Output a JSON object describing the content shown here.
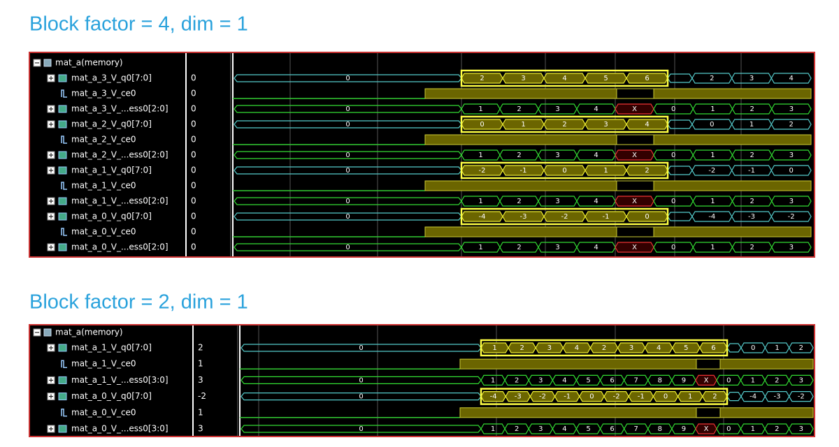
{
  "panels": [
    {
      "title": "Block factor = 4, dim = 1",
      "root": "mat_a(memory)",
      "signals": [
        {
          "name": "mat_a_3_V_q0[7:0]",
          "value": "0",
          "segments": [
            "0",
            "2",
            "3",
            "4",
            "5",
            "6",
            "2",
            "3",
            "4"
          ]
        },
        {
          "name": "mat_a_3_V_ce0",
          "value": "0"
        },
        {
          "name": "mat_a_3_V_...ess0[2:0]",
          "value": "0",
          "segments": [
            "0",
            "1",
            "2",
            "3",
            "4",
            "X",
            "0",
            "1",
            "2",
            "3"
          ]
        },
        {
          "name": "mat_a_2_V_q0[7:0]",
          "value": "0",
          "segments": [
            "0",
            "0",
            "1",
            "2",
            "3",
            "4",
            "0",
            "1",
            "2"
          ]
        },
        {
          "name": "mat_a_2_V_ce0",
          "value": "0"
        },
        {
          "name": "mat_a_2_V_...ess0[2:0]",
          "value": "0",
          "segments": [
            "0",
            "1",
            "2",
            "3",
            "4",
            "X",
            "0",
            "1",
            "2",
            "3"
          ]
        },
        {
          "name": "mat_a_1_V_q0[7:0]",
          "value": "0",
          "segments": [
            "0",
            "-2",
            "-1",
            "0",
            "1",
            "2",
            "-2",
            "-1",
            "0"
          ]
        },
        {
          "name": "mat_a_1_V_ce0",
          "value": "0"
        },
        {
          "name": "mat_a_1_V_...ess0[2:0]",
          "value": "0",
          "segments": [
            "0",
            "1",
            "2",
            "3",
            "4",
            "X",
            "0",
            "1",
            "2",
            "3"
          ]
        },
        {
          "name": "mat_a_0_V_q0[7:0]",
          "value": "0",
          "segments": [
            "0",
            "-4",
            "-3",
            "-2",
            "-1",
            "0",
            "-4",
            "-3",
            "-2"
          ]
        },
        {
          "name": "mat_a_0_V_ce0",
          "value": "0"
        },
        {
          "name": "mat_a_0_V_...ess0[2:0]",
          "value": "0",
          "segments": [
            "0",
            "1",
            "2",
            "3",
            "4",
            "X",
            "0",
            "1",
            "2",
            "3"
          ]
        }
      ]
    },
    {
      "title": "Block factor = 2, dim = 1",
      "root": "mat_a(memory)",
      "signals": [
        {
          "name": "mat_a_1_V_q0[7:0]",
          "value": "2",
          "segments": [
            "0",
            "1",
            "2",
            "3",
            "4",
            "2",
            "3",
            "4",
            "5",
            "6",
            "0",
            "1",
            "2"
          ]
        },
        {
          "name": "mat_a_1_V_ce0",
          "value": "1"
        },
        {
          "name": "mat_a_1_V_...ess0[3:0]",
          "value": "3",
          "segments": [
            "0",
            "1",
            "2",
            "3",
            "4",
            "5",
            "6",
            "7",
            "8",
            "9",
            "X",
            "0",
            "1",
            "2",
            "3"
          ]
        },
        {
          "name": "mat_a_0_V_q0[7:0]",
          "value": "-2",
          "segments": [
            "0",
            "-4",
            "-3",
            "-2",
            "-1",
            "0",
            "-2",
            "-1",
            "0",
            "1",
            "2",
            "-4",
            "-3",
            "-2"
          ]
        },
        {
          "name": "mat_a_0_V_ce0",
          "value": "1"
        },
        {
          "name": "mat_a_0_V_...ess0[3:0]",
          "value": "3",
          "segments": [
            "0",
            "1",
            "2",
            "3",
            "4",
            "5",
            "6",
            "7",
            "8",
            "9",
            "X",
            "0",
            "1",
            "2",
            "3"
          ]
        }
      ]
    }
  ]
}
